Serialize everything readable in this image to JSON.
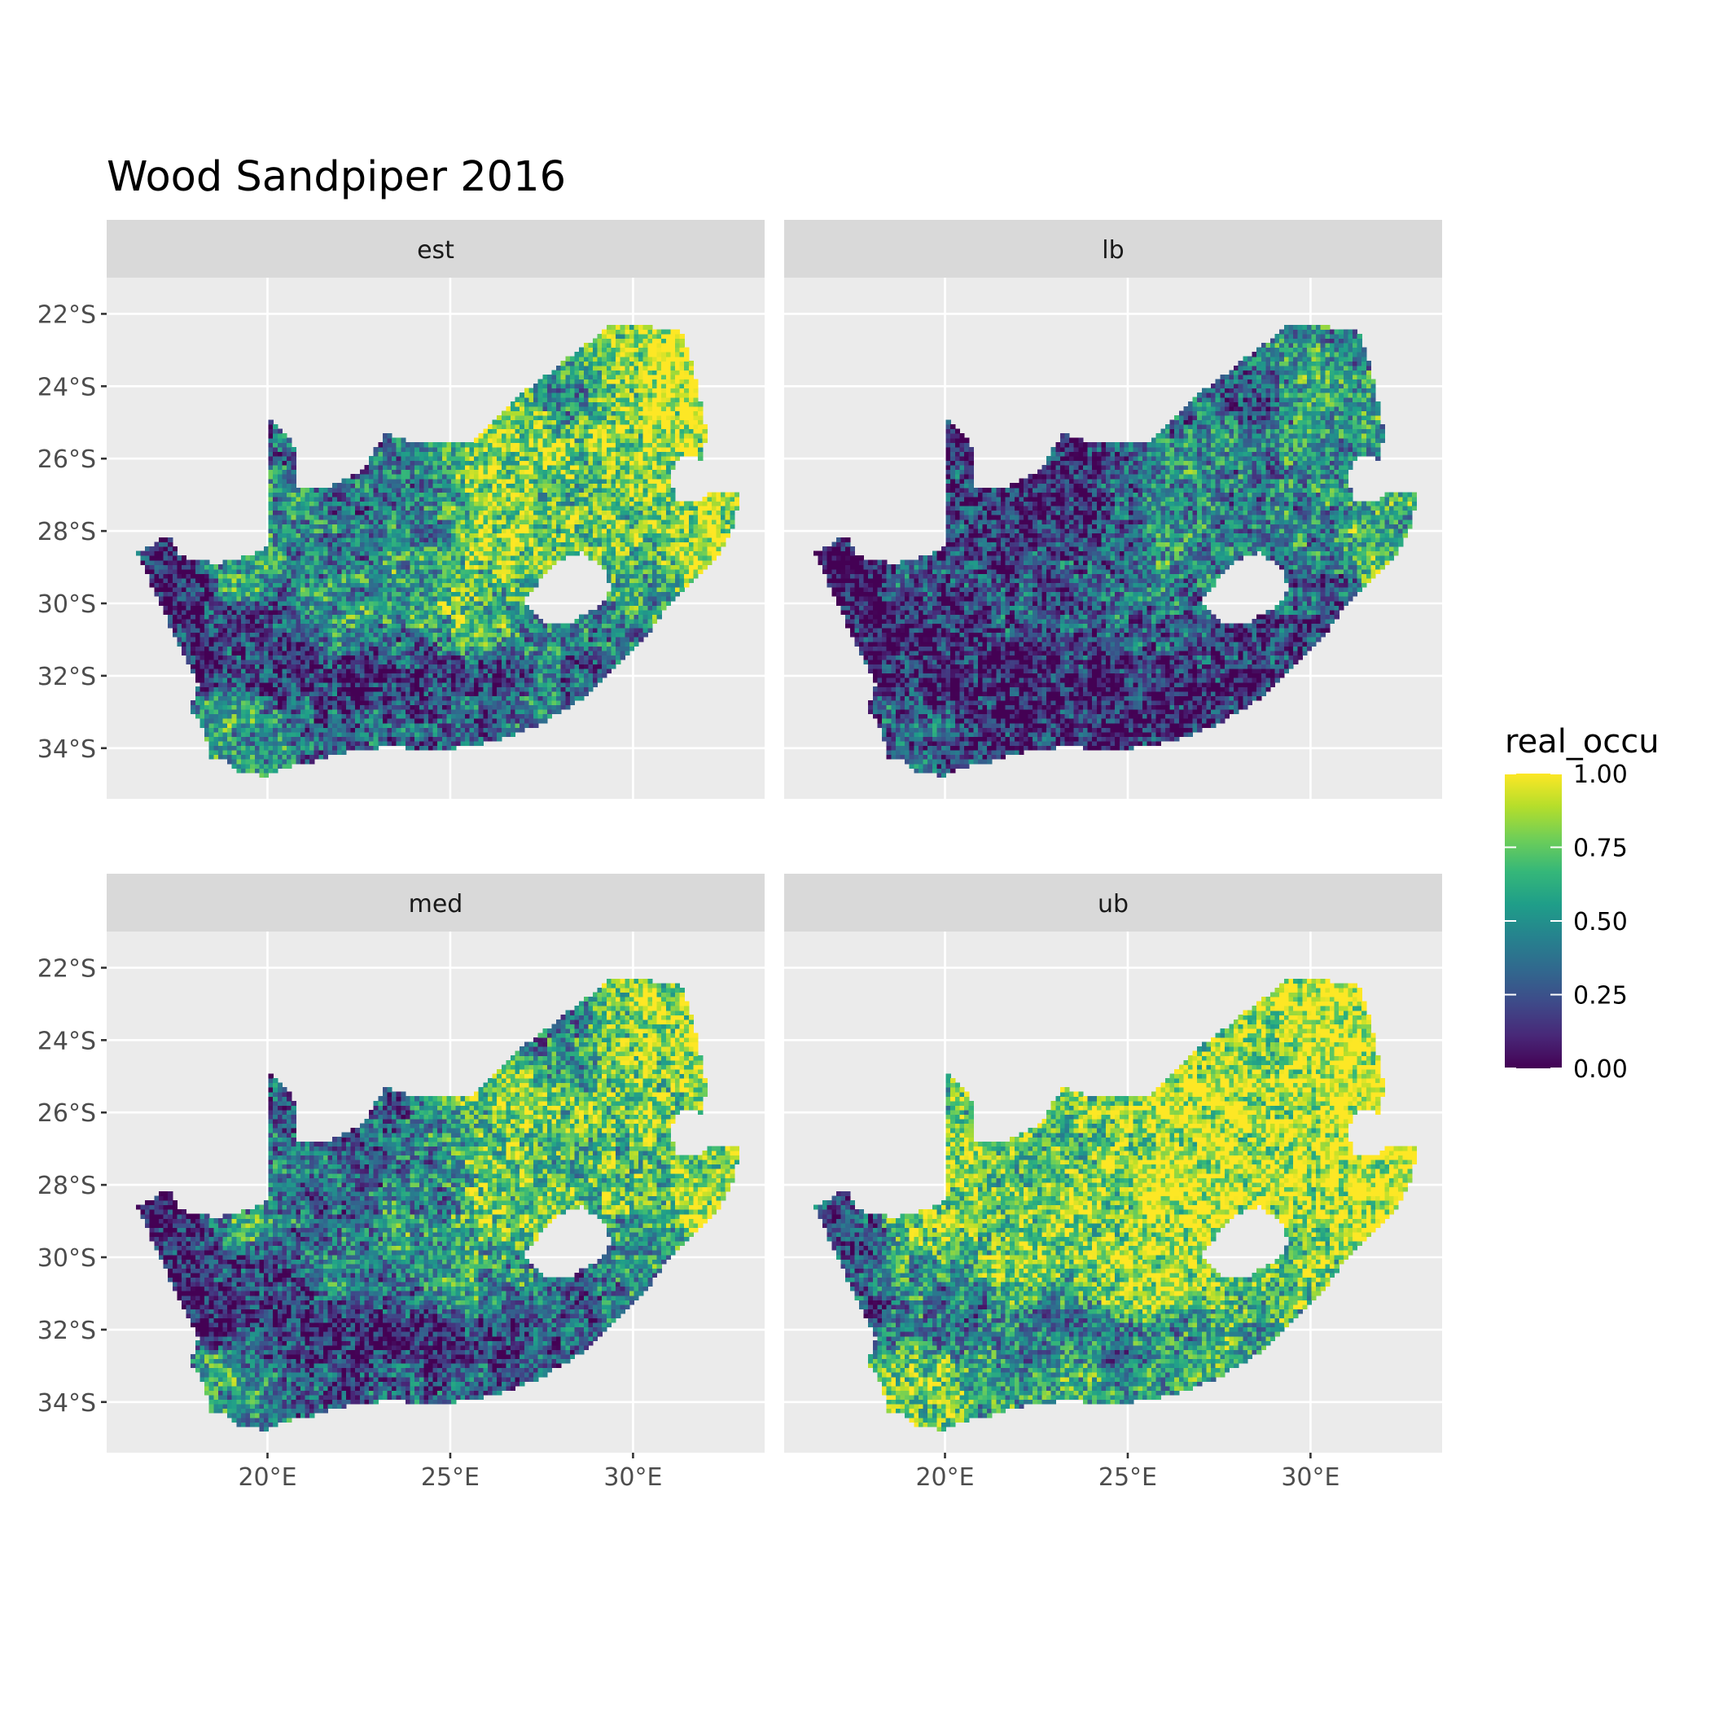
{
  "title": "Wood Sandpiper 2016",
  "panels": [
    {
      "label": "est",
      "cell_key": "est"
    },
    {
      "label": "lb",
      "cell_key": "lb"
    },
    {
      "label": "med",
      "cell_key": "med"
    },
    {
      "label": "ub",
      "cell_key": "ub"
    }
  ],
  "axes": {
    "x_ticks": [
      {
        "value": 20,
        "label": "20°E"
      },
      {
        "value": 25,
        "label": "25°E"
      },
      {
        "value": 30,
        "label": "30°E"
      }
    ],
    "y_ticks": [
      {
        "value": -22,
        "label": "22°S"
      },
      {
        "value": -24,
        "label": "24°S"
      },
      {
        "value": -26,
        "label": "26°S"
      },
      {
        "value": -28,
        "label": "28°S"
      },
      {
        "value": -30,
        "label": "30°S"
      },
      {
        "value": -32,
        "label": "32°S"
      },
      {
        "value": -34,
        "label": "34°S"
      }
    ],
    "xlim": [
      15.6,
      33.6
    ],
    "ylim": [
      -35.4,
      -21.0
    ]
  },
  "legend": {
    "title": "real_occu",
    "breaks": [
      {
        "value": 0.0,
        "label": "0.00"
      },
      {
        "value": 0.25,
        "label": "0.25"
      },
      {
        "value": 0.5,
        "label": "0.50"
      },
      {
        "value": 0.75,
        "label": "0.75"
      },
      {
        "value": 1.0,
        "label": "1.00"
      }
    ],
    "colormap": [
      "#440154",
      "#482878",
      "#3e4a89",
      "#31688e",
      "#26828e",
      "#1f9e89",
      "#35b779",
      "#6ece58",
      "#b5de2b",
      "#fde725"
    ]
  },
  "map_outline": {
    "country": [
      [
        16.45,
        -28.6
      ],
      [
        17.3,
        -28.1
      ],
      [
        17.6,
        -28.7
      ],
      [
        18.6,
        -28.9
      ],
      [
        19.5,
        -28.7
      ],
      [
        20.0,
        -28.4
      ],
      [
        20.0,
        -24.8
      ],
      [
        20.7,
        -25.5
      ],
      [
        20.8,
        -26.8
      ],
      [
        21.6,
        -26.8
      ],
      [
        22.6,
        -26.3
      ],
      [
        23.2,
        -25.3
      ],
      [
        24.2,
        -25.6
      ],
      [
        25.5,
        -25.6
      ],
      [
        26.5,
        -24.6
      ],
      [
        27.1,
        -24.1
      ],
      [
        28.0,
        -23.4
      ],
      [
        29.4,
        -22.3
      ],
      [
        31.3,
        -22.4
      ],
      [
        31.7,
        -23.7
      ],
      [
        32.0,
        -25.2
      ],
      [
        31.9,
        -26.0
      ],
      [
        31.3,
        -25.9
      ],
      [
        31.0,
        -26.4
      ],
      [
        31.2,
        -27.2
      ],
      [
        31.9,
        -27.2
      ],
      [
        32.1,
        -26.9
      ],
      [
        32.9,
        -26.9
      ],
      [
        32.8,
        -27.8
      ],
      [
        32.4,
        -28.6
      ],
      [
        31.7,
        -29.3
      ],
      [
        31.0,
        -30.0
      ],
      [
        30.3,
        -31.0
      ],
      [
        29.6,
        -31.6
      ],
      [
        28.5,
        -32.7
      ],
      [
        27.5,
        -33.3
      ],
      [
        26.3,
        -33.8
      ],
      [
        25.4,
        -33.95
      ],
      [
        24.6,
        -34.1
      ],
      [
        23.5,
        -33.95
      ],
      [
        22.3,
        -34.05
      ],
      [
        21.3,
        -34.35
      ],
      [
        20.7,
        -34.45
      ],
      [
        20.0,
        -34.75
      ],
      [
        19.3,
        -34.7
      ],
      [
        18.8,
        -34.3
      ],
      [
        18.4,
        -34.3
      ],
      [
        18.3,
        -33.5
      ],
      [
        17.9,
        -32.9
      ],
      [
        18.1,
        -32.2
      ],
      [
        17.6,
        -31.2
      ],
      [
        17.0,
        -29.9
      ],
      [
        16.45,
        -28.6
      ]
    ],
    "lesotho_hole": [
      [
        27.0,
        -29.9
      ],
      [
        27.5,
        -29.3
      ],
      [
        28.0,
        -28.8
      ],
      [
        28.6,
        -28.6
      ],
      [
        29.2,
        -29.0
      ],
      [
        29.4,
        -29.6
      ],
      [
        29.1,
        -30.1
      ],
      [
        28.6,
        -30.3
      ],
      [
        28.2,
        -30.6
      ],
      [
        27.7,
        -30.6
      ],
      [
        27.3,
        -30.3
      ],
      [
        27.0,
        -29.9
      ]
    ]
  },
  "field_cells": {
    "est": [
      [
        31.5,
        -24.5,
        0.95
      ],
      [
        31.2,
        -23.0,
        0.9
      ],
      [
        30.2,
        -23.4,
        0.85
      ],
      [
        30.0,
        -25.2,
        0.85
      ],
      [
        31.4,
        -26.4,
        0.8
      ],
      [
        31.8,
        -28.6,
        0.95
      ],
      [
        32.4,
        -27.6,
        0.9
      ],
      [
        26.5,
        -25.0,
        0.75
      ],
      [
        27.3,
        -25.8,
        0.8
      ],
      [
        26.2,
        -28.2,
        0.85
      ],
      [
        26.8,
        -28.6,
        0.8
      ],
      [
        28.5,
        -26.8,
        0.7
      ],
      [
        29.5,
        -28.0,
        0.75
      ],
      [
        30.4,
        -29.3,
        0.6
      ],
      [
        24.5,
        -28.1,
        0.5
      ],
      [
        24.0,
        -29.3,
        0.55
      ],
      [
        25.5,
        -30.0,
        0.7
      ],
      [
        26.0,
        -30.5,
        0.6
      ],
      [
        22.0,
        -30.2,
        0.55
      ],
      [
        19.3,
        -29.1,
        0.6
      ],
      [
        21.5,
        -28.5,
        0.4
      ],
      [
        22.8,
        -27.0,
        0.35
      ],
      [
        21.5,
        -26.2,
        0.35
      ],
      [
        20.4,
        -25.6,
        0.35
      ],
      [
        20.5,
        -27.2,
        0.5
      ],
      [
        17.5,
        -29.5,
        0.08
      ],
      [
        18.0,
        -31.5,
        0.1
      ],
      [
        19.0,
        -30.8,
        0.2
      ],
      [
        20.5,
        -31.5,
        0.15
      ],
      [
        22.5,
        -32.2,
        0.12
      ],
      [
        24.5,
        -32.5,
        0.15
      ],
      [
        26.5,
        -32.3,
        0.2
      ],
      [
        28.5,
        -31.4,
        0.35
      ],
      [
        18.6,
        -33.6,
        0.6
      ],
      [
        19.6,
        -34.1,
        0.55
      ],
      [
        21.5,
        -33.8,
        0.3
      ],
      [
        23.5,
        -33.6,
        0.35
      ],
      [
        25.5,
        -33.4,
        0.3
      ],
      [
        27.5,
        -32.8,
        0.4
      ],
      [
        29.3,
        -30.8,
        0.45
      ],
      [
        30.5,
        -30.0,
        0.55
      ],
      [
        28.0,
        -24.0,
        0.5
      ]
    ],
    "lb": [
      [
        31.5,
        -24.5,
        0.6
      ],
      [
        31.2,
        -23.0,
        0.5
      ],
      [
        30.2,
        -23.4,
        0.55
      ],
      [
        30.0,
        -25.2,
        0.55
      ],
      [
        31.4,
        -26.4,
        0.5
      ],
      [
        31.8,
        -28.6,
        0.7
      ],
      [
        32.4,
        -27.6,
        0.6
      ],
      [
        26.5,
        -25.0,
        0.4
      ],
      [
        27.3,
        -25.8,
        0.5
      ],
      [
        26.2,
        -28.2,
        0.55
      ],
      [
        26.8,
        -28.6,
        0.5
      ],
      [
        28.5,
        -26.8,
        0.4
      ],
      [
        29.5,
        -28.0,
        0.45
      ],
      [
        30.4,
        -29.3,
        0.35
      ],
      [
        24.5,
        -28.1,
        0.25
      ],
      [
        24.0,
        -29.3,
        0.3
      ],
      [
        25.5,
        -30.0,
        0.4
      ],
      [
        26.0,
        -30.5,
        0.35
      ],
      [
        22.0,
        -30.2,
        0.3
      ],
      [
        19.3,
        -29.1,
        0.3
      ],
      [
        21.5,
        -28.5,
        0.15
      ],
      [
        22.8,
        -27.0,
        0.1
      ],
      [
        21.5,
        -26.2,
        0.1
      ],
      [
        20.4,
        -25.6,
        0.1
      ],
      [
        20.5,
        -27.2,
        0.25
      ],
      [
        17.5,
        -29.5,
        0.02
      ],
      [
        18.0,
        -31.5,
        0.03
      ],
      [
        19.0,
        -30.8,
        0.08
      ],
      [
        20.5,
        -31.5,
        0.05
      ],
      [
        22.5,
        -32.2,
        0.05
      ],
      [
        24.5,
        -32.5,
        0.06
      ],
      [
        26.5,
        -32.3,
        0.08
      ],
      [
        28.5,
        -31.4,
        0.15
      ],
      [
        18.6,
        -33.6,
        0.35
      ],
      [
        19.6,
        -34.1,
        0.3
      ],
      [
        21.5,
        -33.8,
        0.12
      ],
      [
        23.5,
        -33.6,
        0.15
      ],
      [
        25.5,
        -33.4,
        0.12
      ],
      [
        27.5,
        -32.8,
        0.18
      ],
      [
        29.3,
        -30.8,
        0.2
      ],
      [
        30.5,
        -30.0,
        0.3
      ],
      [
        28.0,
        -24.0,
        0.25
      ]
    ],
    "med": [
      [
        31.5,
        -24.5,
        0.9
      ],
      [
        31.2,
        -23.0,
        0.85
      ],
      [
        30.2,
        -23.4,
        0.8
      ],
      [
        30.0,
        -25.2,
        0.8
      ],
      [
        31.4,
        -26.4,
        0.75
      ],
      [
        31.8,
        -28.6,
        0.9
      ],
      [
        32.4,
        -27.6,
        0.85
      ],
      [
        26.5,
        -25.0,
        0.7
      ],
      [
        27.3,
        -25.8,
        0.78
      ],
      [
        26.2,
        -28.2,
        0.82
      ],
      [
        26.8,
        -28.6,
        0.78
      ],
      [
        28.5,
        -26.8,
        0.65
      ],
      [
        29.5,
        -28.0,
        0.7
      ],
      [
        30.4,
        -29.3,
        0.55
      ],
      [
        24.5,
        -28.1,
        0.45
      ],
      [
        24.0,
        -29.3,
        0.5
      ],
      [
        25.5,
        -30.0,
        0.65
      ],
      [
        26.0,
        -30.5,
        0.55
      ],
      [
        22.0,
        -30.2,
        0.5
      ],
      [
        19.3,
        -29.1,
        0.55
      ],
      [
        21.5,
        -28.5,
        0.35
      ],
      [
        22.8,
        -27.0,
        0.3
      ],
      [
        21.5,
        -26.2,
        0.3
      ],
      [
        20.4,
        -25.6,
        0.32
      ],
      [
        20.5,
        -27.2,
        0.45
      ],
      [
        17.5,
        -29.5,
        0.07
      ],
      [
        18.0,
        -31.5,
        0.09
      ],
      [
        19.0,
        -30.8,
        0.18
      ],
      [
        20.5,
        -31.5,
        0.13
      ],
      [
        22.5,
        -32.2,
        0.1
      ],
      [
        24.5,
        -32.5,
        0.13
      ],
      [
        26.5,
        -32.3,
        0.18
      ],
      [
        28.5,
        -31.4,
        0.3
      ],
      [
        18.6,
        -33.6,
        0.55
      ],
      [
        19.6,
        -34.1,
        0.5
      ],
      [
        21.5,
        -33.8,
        0.27
      ],
      [
        23.5,
        -33.6,
        0.3
      ],
      [
        25.5,
        -33.4,
        0.27
      ],
      [
        27.5,
        -32.8,
        0.36
      ],
      [
        29.3,
        -30.8,
        0.4
      ],
      [
        30.5,
        -30.0,
        0.5
      ],
      [
        28.0,
        -24.0,
        0.45
      ]
    ],
    "ub": [
      [
        31.5,
        -24.5,
        1.0
      ],
      [
        31.2,
        -23.0,
        0.98
      ],
      [
        30.2,
        -23.4,
        0.97
      ],
      [
        30.0,
        -25.2,
        0.95
      ],
      [
        31.4,
        -26.4,
        0.95
      ],
      [
        31.8,
        -28.6,
        1.0
      ],
      [
        32.4,
        -27.6,
        1.0
      ],
      [
        26.5,
        -25.0,
        0.92
      ],
      [
        27.3,
        -25.8,
        0.95
      ],
      [
        26.2,
        -28.2,
        0.98
      ],
      [
        26.8,
        -28.6,
        0.96
      ],
      [
        28.5,
        -26.8,
        0.9
      ],
      [
        29.5,
        -28.0,
        0.92
      ],
      [
        30.4,
        -29.3,
        0.85
      ],
      [
        24.5,
        -28.1,
        0.8
      ],
      [
        24.0,
        -29.3,
        0.82
      ],
      [
        25.5,
        -30.0,
        0.9
      ],
      [
        26.0,
        -30.5,
        0.85
      ],
      [
        22.0,
        -30.2,
        0.8
      ],
      [
        19.3,
        -29.1,
        0.85
      ],
      [
        21.5,
        -28.5,
        0.7
      ],
      [
        22.8,
        -27.0,
        0.7
      ],
      [
        21.5,
        -26.2,
        0.72
      ],
      [
        20.4,
        -25.6,
        0.75
      ],
      [
        20.5,
        -27.2,
        0.85
      ],
      [
        17.5,
        -29.5,
        0.2
      ],
      [
        18.0,
        -31.5,
        0.25
      ],
      [
        19.0,
        -30.8,
        0.5
      ],
      [
        20.5,
        -31.5,
        0.4
      ],
      [
        22.5,
        -32.2,
        0.35
      ],
      [
        24.5,
        -32.5,
        0.4
      ],
      [
        26.5,
        -32.3,
        0.5
      ],
      [
        28.5,
        -31.4,
        0.65
      ],
      [
        18.6,
        -33.6,
        0.85
      ],
      [
        19.6,
        -34.1,
        0.8
      ],
      [
        21.5,
        -33.8,
        0.55
      ],
      [
        23.5,
        -33.6,
        0.6
      ],
      [
        25.5,
        -33.4,
        0.55
      ],
      [
        27.5,
        -32.8,
        0.65
      ],
      [
        29.3,
        -30.8,
        0.7
      ],
      [
        30.5,
        -30.0,
        0.8
      ],
      [
        28.0,
        -24.0,
        0.75
      ]
    ]
  }
}
